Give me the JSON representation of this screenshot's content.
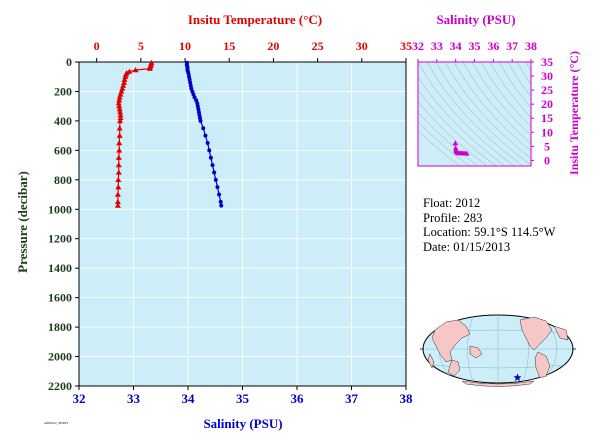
{
  "colors": {
    "temperature": "#e00000",
    "salinity": "#0000cc",
    "ts": "#cc00cc",
    "plot_bg": "#cdeef8",
    "axis_dark": "#1a3d1a",
    "ocean": "#cdeef8",
    "land": "#f7c7c7"
  },
  "info": {
    "float": "Float:  2012",
    "profile": "Profile:  283",
    "location": "Location:  59.1°S  114.5°W",
    "date": "Date:  01/15/2013"
  },
  "footer_code": "A0002012_283DTS",
  "chart_data": [
    {
      "type": "scatter",
      "name": "profile",
      "xlabel_top": "Insitu Temperature (°C)",
      "xlabel_bottom": "Salinity (PSU)",
      "ylabel": "Pressure (decibar)",
      "temp_ticks": [
        0,
        5,
        10,
        15,
        20,
        25,
        30,
        35
      ],
      "sal_ticks": [
        32,
        33,
        34,
        35,
        36,
        37,
        38
      ],
      "pressure_ticks": [
        0,
        200,
        400,
        600,
        800,
        1000,
        1200,
        1400,
        1600,
        1800,
        2000,
        2200
      ],
      "temp_range": [
        -2,
        35
      ],
      "sal_range": [
        32,
        38
      ],
      "pressure_range": [
        0,
        2200
      ],
      "temperature": {
        "pressure": [
          5,
          15,
          25,
          35,
          45,
          55,
          65,
          75,
          85,
          100,
          120,
          140,
          160,
          180,
          200,
          220,
          240,
          260,
          280,
          300,
          320,
          340,
          360,
          380,
          400,
          450,
          500,
          550,
          600,
          650,
          700,
          750,
          800,
          850,
          900,
          950,
          975
        ],
        "values": [
          6.2,
          6.15,
          6.1,
          6.05,
          6.0,
          4.4,
          3.7,
          3.4,
          3.3,
          3.25,
          3.15,
          3.1,
          3.0,
          2.9,
          2.8,
          2.7,
          2.6,
          2.55,
          2.5,
          2.55,
          2.6,
          2.65,
          2.7,
          2.7,
          2.65,
          2.6,
          2.6,
          2.55,
          2.55,
          2.5,
          2.5,
          2.5,
          2.45,
          2.45,
          2.4,
          2.4,
          2.4
        ]
      },
      "salinity": {
        "pressure": [
          5,
          15,
          25,
          35,
          45,
          55,
          65,
          80,
          100,
          120,
          140,
          160,
          180,
          200,
          220,
          240,
          260,
          280,
          300,
          320,
          340,
          360,
          380,
          400,
          450,
          500,
          550,
          600,
          650,
          700,
          750,
          800,
          850,
          900,
          950,
          975
        ],
        "values": [
          33.98,
          33.98,
          33.98,
          33.99,
          33.99,
          33.99,
          34.0,
          34.01,
          34.02,
          34.03,
          34.04,
          34.05,
          34.06,
          34.08,
          34.1,
          34.12,
          34.15,
          34.17,
          34.18,
          34.19,
          34.2,
          34.21,
          34.22,
          34.23,
          34.28,
          34.32,
          34.36,
          34.39,
          34.42,
          34.45,
          34.48,
          34.51,
          34.54,
          34.57,
          34.6,
          34.61
        ]
      }
    },
    {
      "type": "scatter",
      "name": "ts_diagram",
      "xlabel": "Salinity (PSU)",
      "ylabel": "Insitu Temperature (°C)",
      "x_ticks": [
        32,
        33,
        34,
        35,
        36,
        37,
        38
      ],
      "y_ticks": [
        0,
        5,
        10,
        15,
        20,
        25,
        30,
        35
      ],
      "x_range": [
        32,
        38
      ],
      "y_range": [
        -2,
        35
      ],
      "points": {
        "salinity": [
          33.98,
          33.99,
          34.0,
          34.01,
          34.02,
          34.05,
          34.1,
          34.15,
          34.2,
          34.23,
          34.3,
          34.36,
          34.42,
          34.48,
          34.54,
          34.6
        ],
        "temperature": [
          6.2,
          6.0,
          4.4,
          3.7,
          3.3,
          3.0,
          2.7,
          2.55,
          2.6,
          2.65,
          2.6,
          2.55,
          2.5,
          2.5,
          2.45,
          2.4
        ]
      }
    }
  ]
}
